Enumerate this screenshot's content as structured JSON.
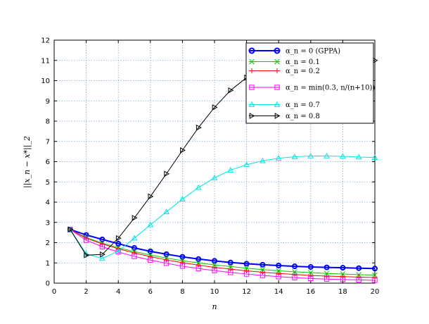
{
  "chart_data": {
    "type": "line",
    "xlabel": "n",
    "ylabel": "||x_n − x*||_2",
    "xlim": [
      0,
      20
    ],
    "ylim": [
      0,
      12
    ],
    "xticks": [
      0,
      2,
      4,
      6,
      8,
      10,
      12,
      14,
      16,
      18,
      20
    ],
    "yticks": [
      0,
      1,
      2,
      3,
      4,
      5,
      6,
      7,
      8,
      9,
      10,
      11,
      12
    ],
    "grid": true,
    "legend_position": "top-right",
    "x": [
      1,
      2,
      3,
      4,
      5,
      6,
      7,
      8,
      9,
      10,
      11,
      12,
      13,
      14,
      15,
      16,
      17,
      18,
      19,
      20
    ],
    "series": [
      {
        "name": "α_n = 0 (GPPA)",
        "color": "#0000ff",
        "marker": "circle",
        "values": [
          2.65,
          2.38,
          2.16,
          1.95,
          1.74,
          1.57,
          1.43,
          1.3,
          1.19,
          1.1,
          1.02,
          0.96,
          0.91,
          0.87,
          0.83,
          0.8,
          0.78,
          0.76,
          0.74,
          0.72
        ]
      },
      {
        "name": "α_n = 0.1",
        "color": "#00cc00",
        "marker": "x",
        "values": [
          2.65,
          2.25,
          1.98,
          1.75,
          1.56,
          1.39,
          1.24,
          1.11,
          1.0,
          0.9,
          0.82,
          0.74,
          0.67,
          0.61,
          0.56,
          0.52,
          0.48,
          0.45,
          0.42,
          0.4
        ]
      },
      {
        "name": "α_n = 0.2",
        "color": "#ff0000",
        "marker": "plus",
        "values": [
          2.65,
          2.22,
          1.94,
          1.7,
          1.49,
          1.31,
          1.15,
          1.01,
          0.89,
          0.78,
          0.69,
          0.61,
          0.54,
          0.48,
          0.43,
          0.38,
          0.35,
          0.32,
          0.3,
          0.28
        ]
      },
      {
        "name": "α_n = min(0.3, n/(n+10))",
        "color": "#ff00ff",
        "marker": "square",
        "values": [
          2.65,
          2.12,
          1.8,
          1.54,
          1.32,
          1.14,
          0.98,
          0.84,
          0.72,
          0.62,
          0.53,
          0.45,
          0.38,
          0.32,
          0.27,
          0.23,
          0.2,
          0.18,
          0.16,
          0.14
        ]
      },
      {
        "name": "α_n = 0.7",
        "color": "#00e5e5",
        "marker": "triangle-up",
        "values": [
          2.65,
          1.45,
          1.22,
          1.58,
          2.22,
          2.88,
          3.52,
          4.15,
          4.72,
          5.2,
          5.58,
          5.85,
          6.04,
          6.17,
          6.24,
          6.28,
          6.28,
          6.26,
          6.23,
          6.2
        ]
      },
      {
        "name": "α_n = 0.8",
        "color": "#000000",
        "marker": "triangle-right",
        "values": [
          2.65,
          1.38,
          1.42,
          2.22,
          3.22,
          4.28,
          5.4,
          6.56,
          7.68,
          8.68,
          9.52,
          10.15,
          10.6,
          10.88,
          11.02,
          11.06,
          11.05,
          11.03,
          11.01,
          11.0
        ]
      }
    ]
  }
}
